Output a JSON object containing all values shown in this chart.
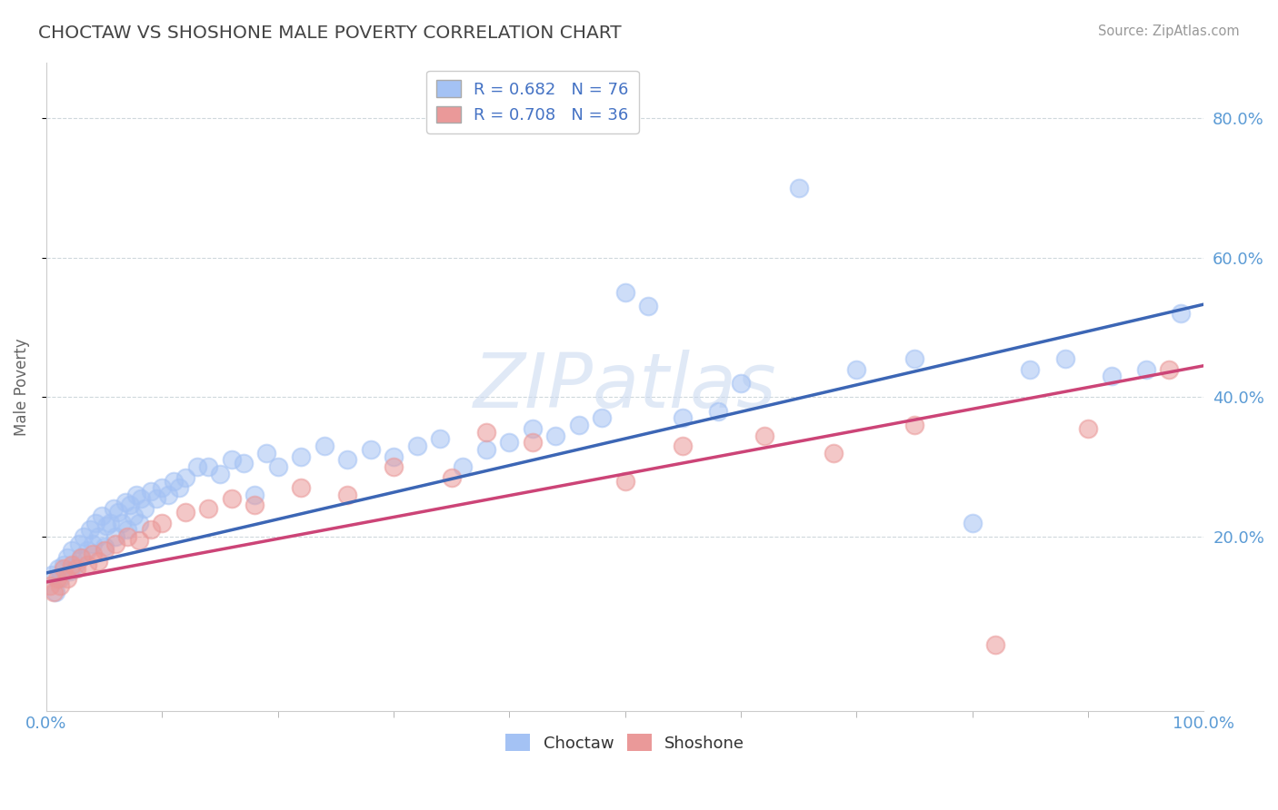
{
  "title": "CHOCTAW VS SHOSHONE MALE POVERTY CORRELATION CHART",
  "source": "Source: ZipAtlas.com",
  "ylabel": "Male Poverty",
  "xlim": [
    0,
    1.0
  ],
  "ylim": [
    -0.05,
    0.88
  ],
  "ytick_labels": [
    "20.0%",
    "40.0%",
    "60.0%",
    "80.0%"
  ],
  "ytick_vals": [
    0.2,
    0.4,
    0.6,
    0.8
  ],
  "choctaw_color": "#a4c2f4",
  "shoshone_color": "#ea9999",
  "choctaw_line_color": "#3c66b5",
  "shoshone_line_color": "#cc4477",
  "choctaw_R": 0.682,
  "choctaw_N": 76,
  "shoshone_R": 0.708,
  "shoshone_N": 36,
  "background_color": "#ffffff",
  "grid_color": "#b0bec5",
  "title_color": "#444444",
  "axis_label_color": "#5b9bd5",
  "legend_text_color": "#4472c4",
  "choctaw_x": [
    0.005,
    0.008,
    0.01,
    0.012,
    0.015,
    0.018,
    0.02,
    0.022,
    0.025,
    0.028,
    0.03,
    0.032,
    0.035,
    0.038,
    0.04,
    0.042,
    0.045,
    0.048,
    0.05,
    0.052,
    0.055,
    0.058,
    0.06,
    0.062,
    0.065,
    0.068,
    0.07,
    0.072,
    0.075,
    0.078,
    0.08,
    0.082,
    0.085,
    0.09,
    0.095,
    0.1,
    0.105,
    0.11,
    0.115,
    0.12,
    0.13,
    0.14,
    0.15,
    0.16,
    0.17,
    0.18,
    0.19,
    0.2,
    0.22,
    0.24,
    0.26,
    0.28,
    0.3,
    0.32,
    0.34,
    0.36,
    0.38,
    0.4,
    0.42,
    0.44,
    0.46,
    0.48,
    0.5,
    0.52,
    0.55,
    0.58,
    0.6,
    0.65,
    0.7,
    0.75,
    0.8,
    0.85,
    0.88,
    0.92,
    0.95,
    0.98
  ],
  "choctaw_y": [
    0.145,
    0.12,
    0.155,
    0.14,
    0.16,
    0.17,
    0.15,
    0.18,
    0.16,
    0.19,
    0.17,
    0.2,
    0.18,
    0.21,
    0.19,
    0.22,
    0.2,
    0.23,
    0.185,
    0.215,
    0.22,
    0.24,
    0.2,
    0.235,
    0.22,
    0.25,
    0.21,
    0.245,
    0.23,
    0.26,
    0.22,
    0.255,
    0.24,
    0.265,
    0.255,
    0.27,
    0.26,
    0.28,
    0.27,
    0.285,
    0.3,
    0.3,
    0.29,
    0.31,
    0.305,
    0.26,
    0.32,
    0.3,
    0.315,
    0.33,
    0.31,
    0.325,
    0.315,
    0.33,
    0.34,
    0.3,
    0.325,
    0.335,
    0.355,
    0.345,
    0.36,
    0.37,
    0.55,
    0.53,
    0.37,
    0.38,
    0.42,
    0.7,
    0.44,
    0.455,
    0.22,
    0.44,
    0.455,
    0.43,
    0.44,
    0.52
  ],
  "shoshone_x": [
    0.003,
    0.006,
    0.009,
    0.012,
    0.015,
    0.018,
    0.022,
    0.026,
    0.03,
    0.035,
    0.04,
    0.045,
    0.05,
    0.06,
    0.07,
    0.08,
    0.09,
    0.1,
    0.12,
    0.14,
    0.16,
    0.18,
    0.22,
    0.26,
    0.3,
    0.35,
    0.38,
    0.42,
    0.5,
    0.55,
    0.62,
    0.68,
    0.75,
    0.82,
    0.9,
    0.97
  ],
  "shoshone_y": [
    0.13,
    0.12,
    0.14,
    0.13,
    0.155,
    0.14,
    0.16,
    0.155,
    0.17,
    0.16,
    0.175,
    0.165,
    0.18,
    0.19,
    0.2,
    0.195,
    0.21,
    0.22,
    0.235,
    0.24,
    0.255,
    0.245,
    0.27,
    0.26,
    0.3,
    0.285,
    0.35,
    0.335,
    0.28,
    0.33,
    0.345,
    0.32,
    0.36,
    0.045,
    0.355,
    0.44
  ]
}
